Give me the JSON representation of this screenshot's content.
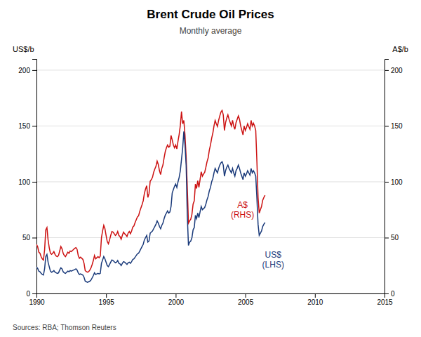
{
  "chart_data": {
    "type": "line",
    "title": "Brent Crude Oil Prices",
    "subtitle": "Monthly average",
    "ylabel": "US$/b",
    "y2label": "A$/b",
    "source": "Sources:  RBA; Thomson Reuters",
    "xlim": [
      1990,
      2015
    ],
    "xticks": [
      1990,
      1995,
      2000,
      2005,
      2010,
      2015
    ],
    "ylim": [
      0,
      210
    ],
    "yticks": [
      0,
      50,
      100,
      150,
      200
    ],
    "y2lim": [
      0,
      210
    ],
    "y2ticks": [
      0,
      50,
      100,
      150,
      200
    ],
    "grid": true,
    "annotations": [
      {
        "text": "A$\n(RHS)",
        "x": 2004.8,
        "y": 75,
        "color": "#cc1111"
      },
      {
        "text": "US$\n(LHS)",
        "x": 2007.0,
        "y": 30,
        "color": "#1a3a7a"
      }
    ],
    "x": [
      1990,
      1990.0833333333333,
      1990.1666666666667,
      1990.25,
      1990.3333333333333,
      1990.4166666666667,
      1990.5,
      1990.5833333333333,
      1990.6666666666667,
      1990.75,
      1990.8333333333333,
      1990.9166666666667,
      1991,
      1991.0833333333333,
      1991.1666666666667,
      1991.25,
      1991.3333333333333,
      1991.4166666666667,
      1991.5,
      1991.5833333333333,
      1991.6666666666667,
      1991.75,
      1991.8333333333333,
      1991.9166666666667,
      1992,
      1992.0833333333333,
      1992.1666666666667,
      1992.25,
      1992.3333333333333,
      1992.4166666666667,
      1992.5,
      1992.5833333333333,
      1992.6666666666667,
      1992.75,
      1992.8333333333333,
      1992.9166666666667,
      1993,
      1993.0833333333333,
      1993.1666666666667,
      1993.25,
      1993.3333333333333,
      1993.4166666666667,
      1993.5,
      1993.5833333333333,
      1993.6666666666667,
      1993.75,
      1993.8333333333333,
      1993.9166666666667,
      1994,
      1994.0833333333333,
      1994.1666666666667,
      1994.25,
      1994.3333333333333,
      1994.4166666666667,
      1994.5,
      1994.5833333333333,
      1994.6666666666667,
      1994.75,
      1994.8333333333333,
      1994.9166666666667,
      1995,
      1995.0833333333333,
      1995.1666666666667,
      1995.25,
      1995.3333333333333,
      1995.4166666666667,
      1995.5,
      1995.5833333333333,
      1995.6666666666667,
      1995.75,
      1995.8333333333333,
      1995.9166666666667,
      1996,
      1996.0833333333333,
      1996.1666666666667,
      1996.25,
      1996.3333333333333,
      1996.4166666666667,
      1996.5,
      1996.5833333333333,
      1996.6666666666667,
      1996.75,
      1996.8333333333333,
      1996.9166666666667,
      1997,
      1997.0833333333333,
      1997.1666666666667,
      1997.25,
      1997.3333333333333,
      1997.4166666666667,
      1997.5,
      1997.5833333333333,
      1997.6666666666667,
      1997.75,
      1997.8333333333333,
      1997.9166666666667,
      1998,
      1998.0833333333333,
      1998.1666666666667,
      1998.25,
      1998.3333333333333,
      1998.4166666666667,
      1998.5,
      1998.5833333333333,
      1998.6666666666667,
      1998.75,
      1998.8333333333333,
      1998.9166666666667,
      1999,
      1999.0833333333333,
      1999.1666666666667,
      1999.25,
      1999.3333333333333,
      1999.4166666666667,
      1999.5,
      1999.5833333333333,
      1999.6666666666667,
      1999.75,
      1999.8333333333333,
      1999.9166666666667,
      2000,
      2000.0833333333333,
      2000.1666666666667,
      2000.25,
      2000.3333333333333,
      2000.4166666666667,
      2000.5,
      2000.5833333333333,
      2000.6666666666667,
      2000.75,
      2000.8333333333333,
      2000.9166666666667,
      2001,
      2001.0833333333333,
      2001.1666666666667,
      2001.25,
      2001.3333333333333,
      2001.4166666666667,
      2001.5,
      2001.5833333333333,
      2001.6666666666667,
      2001.75,
      2001.8333333333333,
      2001.9166666666667,
      2002,
      2002.0833333333333,
      2002.1666666666667,
      2002.25,
      2002.3333333333333,
      2002.4166666666667,
      2002.5,
      2002.5833333333333,
      2002.6666666666667,
      2002.75,
      2002.8333333333333,
      2002.9166666666667,
      2003,
      2003.0833333333333,
      2003.1666666666667,
      2003.25,
      2003.3333333333333,
      2003.4166666666667,
      2003.5,
      2003.5833333333333,
      2003.6666666666667,
      2003.75,
      2003.8333333333333,
      2003.9166666666667,
      2004,
      2004.0833333333333,
      2004.1666666666667,
      2004.25,
      2004.3333333333333,
      2004.4166666666667,
      2004.5,
      2004.5833333333333,
      2004.6666666666667,
      2004.75,
      2004.8333333333333,
      2004.9166666666667,
      2005,
      2005.0833333333333,
      2005.1666666666667,
      2005.25,
      2005.3333333333333,
      2005.4166666666667,
      2005.5,
      2005.5833333333333,
      2005.6666666666667,
      2005.75,
      2005.8333333333333,
      2005.9166666666667,
      2006,
      2006.0833333333333,
      2006.1666666666667,
      2006.25,
      2006.3333333333333,
      2006.4166666666667
    ],
    "series": [
      {
        "name": "US$",
        "color": "#1a3a7a",
        "axis": "y",
        "values": [
          23.7,
          22.5,
          20.0,
          19.5,
          18.0,
          17.0,
          16.5,
          22.0,
          33.0,
          35.0,
          28.0,
          24.0,
          20.0,
          19.0,
          19.5,
          20.5,
          19.0,
          18.5,
          18.0,
          18.5,
          21.0,
          23.0,
          22.0,
          19.5,
          18.5,
          18.0,
          19.0,
          20.0,
          19.5,
          20.5,
          20.0,
          20.5,
          21.0,
          21.5,
          22.0,
          21.0,
          18.5,
          17.0,
          17.5,
          17.0,
          16.5,
          14.5,
          11.0,
          10.5,
          10.0,
          10.5,
          11.0,
          12.0,
          14.0,
          16.0,
          18.5,
          17.0,
          17.5,
          18.0,
          17.5,
          18.0,
          27.0,
          30.0,
          33.0,
          31.0,
          28.0,
          25.0,
          24.0,
          26.0,
          28.0,
          30.0,
          29.5,
          28.5,
          27.5,
          28.0,
          29.5,
          27.0,
          26.5,
          25.0,
          27.0,
          28.5,
          28.0,
          27.0,
          26.0,
          27.5,
          28.0,
          27.0,
          28.5,
          30.5,
          31.0,
          32.5,
          34.0,
          35.5,
          36.0,
          38.0,
          40.0,
          42.0,
          44.0,
          48.0,
          50.0,
          52.0,
          46.0,
          47.0,
          54.0,
          55.0,
          56.0,
          58.0,
          60.0,
          62.0,
          65.0,
          63.0,
          60.0,
          58.0,
          61.0,
          63.0,
          67.0,
          70.0,
          72.0,
          74.0,
          72.0,
          73.0,
          78.0,
          90.0,
          93.0,
          96.0,
          98.0,
          95.0,
          100.0,
          104.0,
          110.0,
          120.0,
          130.0,
          145.0,
          133.0,
          115.0,
          70.0,
          43.0,
          46.0,
          47.0,
          50.0,
          57.0,
          59.0,
          70.0,
          67.0,
          72.0,
          68.0,
          73.0,
          78.0,
          75.0,
          76.0,
          77.0,
          80.0,
          84.0,
          87.0,
          92.0,
          95.0,
          100.0,
          103.0,
          108.0,
          112.0,
          110.0,
          108.0,
          112.0,
          115.0,
          117.0,
          118.0,
          115.0,
          105.0,
          110.0,
          113.0,
          115.0,
          112.0,
          110.0,
          108.0,
          112.0,
          108.0,
          105.0,
          110.0,
          112.0,
          115.0,
          112.0,
          108.0,
          105.0,
          102.0,
          108.0,
          105.0,
          107.0,
          110.0,
          108.0,
          106.0,
          112.0,
          108.0,
          110.0,
          108.0,
          105.0,
          85.0,
          62.0,
          52.0,
          54.0,
          56.0,
          60.0,
          62.0,
          63.5
        ]
      },
      {
        "name": "A$",
        "color": "#cc1111",
        "axis": "y2",
        "values": [
          44.0,
          42.0,
          37.0,
          36.0,
          33.0,
          31.0,
          30.0,
          39.0,
          57.0,
          59.0,
          48.0,
          41.0,
          36.0,
          35.0,
          36.0,
          37.5,
          35.0,
          33.5,
          33.0,
          34.0,
          38.0,
          42.0,
          40.0,
          36.0,
          34.0,
          33.0,
          35.0,
          37.0,
          36.0,
          38.0,
          37.5,
          38.5,
          39.5,
          40.5,
          41.0,
          39.5,
          34.0,
          31.5,
          32.5,
          31.5,
          30.5,
          27.0,
          20.5,
          19.5,
          19.0,
          19.5,
          21.0,
          23.0,
          26.0,
          29.5,
          34.0,
          31.0,
          32.0,
          33.0,
          32.0,
          33.5,
          50.0,
          56.0,
          61.0,
          58.0,
          52.0,
          46.5,
          44.5,
          48.0,
          52.0,
          55.5,
          55.0,
          53.5,
          52.0,
          53.0,
          55.5,
          52.0,
          51.0,
          48.5,
          52.0,
          55.0,
          53.5,
          52.5,
          51.0,
          54.0,
          55.5,
          53.5,
          56.0,
          59.5,
          60.5,
          63.5,
          66.0,
          68.5,
          69.5,
          73.5,
          76.5,
          79.5,
          83.0,
          89.5,
          93.5,
          96.5,
          86.0,
          89.5,
          100.5,
          102.0,
          104.0,
          108.5,
          111.5,
          114.0,
          118.5,
          115.5,
          110.0,
          106.5,
          112.0,
          115.0,
          121.5,
          127.0,
          130.5,
          133.0,
          131.0,
          132.0,
          141.5,
          137.5,
          133.0,
          130.5,
          133.0,
          129.5,
          136.5,
          142.5,
          150.5,
          163.0,
          152.0,
          155.0,
          142.0,
          122.5,
          95.0,
          63.0,
          65.0,
          66.5,
          71.0,
          80.0,
          83.0,
          98.0,
          94.0,
          101.0,
          95.0,
          102.0,
          109.0,
          105.0,
          107.0,
          108.5,
          113.0,
          118.0,
          121.5,
          128.5,
          133.0,
          139.0,
          143.5,
          150.0,
          155.0,
          152.0,
          149.5,
          155.0,
          159.0,
          162.5,
          164.0,
          160.0,
          146.0,
          153.0,
          157.0,
          160.0,
          156.0,
          153.0,
          150.0,
          155.0,
          150.0,
          147.0,
          153.0,
          156.0,
          159.0,
          156.0,
          150.0,
          146.0,
          142.0,
          150.0,
          146.0,
          148.5,
          152.0,
          149.5,
          147.0,
          155.0,
          150.0,
          152.5,
          150.0,
          146.0,
          118.0,
          86.0,
          72.0,
          75.0,
          78.0,
          83.5,
          86.0,
          88.0
        ]
      }
    ]
  }
}
